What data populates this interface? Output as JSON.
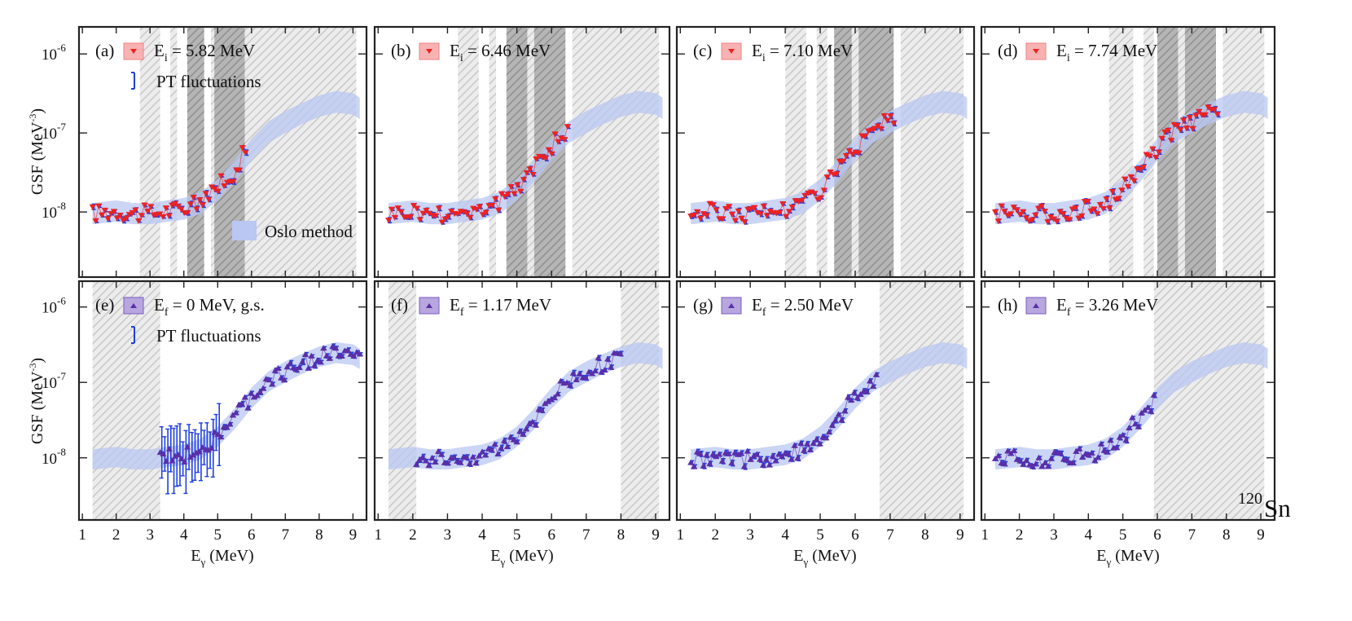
{
  "figure": {
    "nucleus_mass": "120",
    "nucleus_symbol": "Sn"
  },
  "chart_data": {
    "type": "scatter",
    "x_range": [
      0.9,
      9.4
    ],
    "y_range": [
      1.5e-09,
      2.2e-06
    ],
    "y_scale": "log",
    "x_ticks": [
      "1",
      "2",
      "3",
      "4",
      "5",
      "6",
      "7",
      "8",
      "9"
    ],
    "y_ticks": [
      {
        "base": "10",
        "exp": "-6",
        "value": 1e-06
      },
      {
        "base": "10",
        "exp": "-7",
        "value": 1e-07
      },
      {
        "base": "10",
        "exp": "-8",
        "value": 1e-08
      }
    ],
    "xlabel_main": "E",
    "xlabel_sub": "γ",
    "xlabel_unit": "(MeV)",
    "ylabel_main": "GSF (MeV",
    "ylabel_exp": "-3",
    "ylabel_close": ")",
    "legend_oslo": "Oslo method",
    "legend_pt": "PT fluctuations",
    "colors": {
      "ei": "#ee2222",
      "ef": "#5b2fa8",
      "pt": "#1f3fe0",
      "oslo": "#b9c7f2",
      "hatch": "#c8c8c8",
      "dark_hatch": "#8f8f8f"
    },
    "oslo_band": {
      "x": [
        1.3,
        2.0,
        2.5,
        3.0,
        3.5,
        4.0,
        4.5,
        5.0,
        5.5,
        6.0,
        6.5,
        7.0,
        7.5,
        8.0,
        8.5,
        9.0,
        9.2
      ],
      "lower": [
        7e-09,
        7.5e-09,
        7e-09,
        7e-09,
        7.5e-09,
        8e-09,
        9.5e-09,
        1.4e-08,
        2.4e-08,
        4.5e-08,
        7.5e-08,
        1e-07,
        1.3e-07,
        1.6e-07,
        1.8e-07,
        1.7e-07,
        1.5e-07
      ],
      "upper": [
        1.3e-08,
        1.4e-08,
        1.3e-08,
        1.3e-08,
        1.4e-08,
        1.5e-08,
        1.8e-08,
        2.6e-08,
        4.5e-08,
        8.5e-08,
        1.4e-07,
        1.9e-07,
        2.4e-07,
        3e-07,
        3.4e-07,
        3.2e-07,
        2.8e-07
      ]
    },
    "panels": [
      {
        "id": "a",
        "label_prefix": "(a)",
        "var": "E",
        "sub": "i",
        "value_text": "= 5.82 MeV",
        "kind": "ei",
        "show_pt_legend": true,
        "show_oslo_legend": true,
        "x_max": 5.82,
        "hatch": [
          [
            2.7,
            3.3
          ],
          [
            3.6,
            3.8
          ],
          [
            4.2,
            4.6
          ],
          [
            4.8,
            5.8
          ],
          [
            5.8,
            9.1
          ]
        ],
        "dark": [
          [
            4.1,
            4.6
          ],
          [
            4.9,
            5.8
          ]
        ]
      },
      {
        "id": "b",
        "label_prefix": "(b)",
        "var": "E",
        "sub": "i",
        "value_text": "= 6.46 MeV",
        "kind": "ei",
        "show_pt_legend": false,
        "show_oslo_legend": false,
        "x_max": 6.46,
        "hatch": [
          [
            3.3,
            3.9
          ],
          [
            4.2,
            4.4
          ],
          [
            4.7,
            6.4
          ],
          [
            6.6,
            9.1
          ]
        ],
        "dark": [
          [
            4.7,
            5.3
          ],
          [
            5.5,
            6.4
          ]
        ]
      },
      {
        "id": "c",
        "label_prefix": "(c)",
        "var": "E",
        "sub": "i",
        "value_text": "= 7.10 MeV",
        "kind": "ei",
        "show_pt_legend": false,
        "show_oslo_legend": false,
        "x_max": 7.1,
        "hatch": [
          [
            4.0,
            4.6
          ],
          [
            4.9,
            5.2
          ],
          [
            5.4,
            7.1
          ],
          [
            7.3,
            9.1
          ]
        ],
        "dark": [
          [
            5.4,
            5.9
          ],
          [
            6.1,
            7.1
          ]
        ]
      },
      {
        "id": "d",
        "label_prefix": "(d)",
        "var": "E",
        "sub": "i",
        "value_text": "= 7.74 MeV",
        "kind": "ei",
        "show_pt_legend": false,
        "show_oslo_legend": false,
        "x_max": 7.74,
        "hatch": [
          [
            4.6,
            5.3
          ],
          [
            5.6,
            5.9
          ],
          [
            6.0,
            7.7
          ],
          [
            7.9,
            9.1
          ]
        ],
        "dark": [
          [
            6.0,
            6.6
          ],
          [
            6.8,
            7.7
          ]
        ]
      },
      {
        "id": "e",
        "label_prefix": "(e)",
        "var": "E",
        "sub": "f",
        "value_text": "= 0 MeV, g.s.",
        "kind": "ef",
        "show_pt_legend": true,
        "show_oslo_legend": false,
        "x_min": 3.3,
        "x_max": 9.2,
        "hatch": [
          [
            1.3,
            3.3
          ]
        ],
        "dark": []
      },
      {
        "id": "f",
        "label_prefix": "(f)",
        "var": "E",
        "sub": "f",
        "value_text": "= 1.17 MeV",
        "kind": "ef",
        "show_pt_legend": false,
        "show_oslo_legend": false,
        "x_min": 2.1,
        "x_max": 7.98,
        "hatch": [
          [
            1.3,
            2.1
          ],
          [
            8.0,
            9.1
          ]
        ],
        "dark": []
      },
      {
        "id": "g",
        "label_prefix": "(g)",
        "var": "E",
        "sub": "f",
        "value_text": "= 2.50 MeV",
        "kind": "ef",
        "show_pt_legend": false,
        "show_oslo_legend": false,
        "x_min": 1.3,
        "x_max": 6.6,
        "hatch": [
          [
            6.7,
            9.1
          ]
        ],
        "dark": []
      },
      {
        "id": "h",
        "label_prefix": "(h)",
        "var": "E",
        "sub": "f",
        "value_text": "= 3.26 MeV",
        "kind": "ef",
        "show_pt_legend": false,
        "show_oslo_legend": false,
        "x_min": 1.3,
        "x_max": 5.9,
        "hatch": [
          [
            5.9,
            9.1
          ]
        ],
        "dark": []
      }
    ]
  }
}
